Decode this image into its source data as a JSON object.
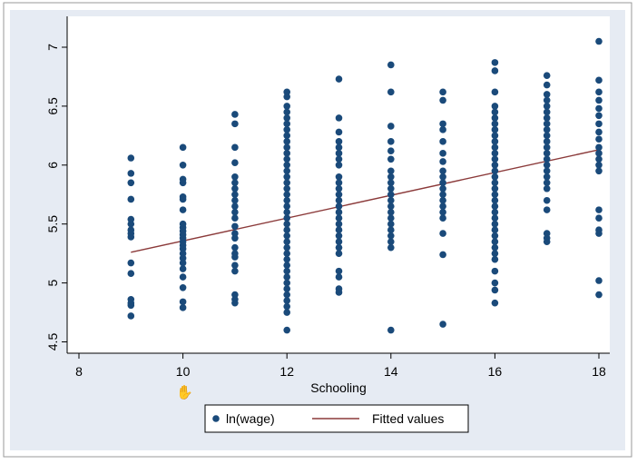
{
  "chart_data": {
    "type": "scatter",
    "xlabel": "Schooling",
    "ylabel": "",
    "xlim": [
      8,
      18
    ],
    "ylim": [
      4.5,
      7
    ],
    "xticks": [
      "8",
      "10",
      "12",
      "14",
      "16",
      "18"
    ],
    "yticks": [
      "4.5",
      "5",
      "5.5",
      "6",
      "6.5",
      "7"
    ],
    "grid": false,
    "legend_position": "bottom",
    "colors": {
      "points": "#1a4a7a",
      "fit_line": "#8b3a3a",
      "panel": "#e6ebf3",
      "plot": "#ffffff"
    },
    "series": [
      {
        "name": "ln(wage)",
        "kind": "scatter",
        "points": [
          [
            9,
            6.06
          ],
          [
            9,
            5.93
          ],
          [
            9,
            5.85
          ],
          [
            9,
            5.71
          ],
          [
            9,
            5.54
          ],
          [
            9,
            5.5
          ],
          [
            9,
            5.45
          ],
          [
            9,
            5.42
          ],
          [
            9,
            5.39
          ],
          [
            9,
            5.17
          ],
          [
            9,
            5.08
          ],
          [
            9,
            4.86
          ],
          [
            9,
            4.83
          ],
          [
            9,
            4.81
          ],
          [
            9,
            4.72
          ],
          [
            10,
            6.15
          ],
          [
            10,
            6.0
          ],
          [
            10,
            5.88
          ],
          [
            10,
            5.85
          ],
          [
            10,
            5.73
          ],
          [
            10,
            5.71
          ],
          [
            10,
            5.62
          ],
          [
            10,
            5.5
          ],
          [
            10,
            5.47
          ],
          [
            10,
            5.44
          ],
          [
            10,
            5.41
          ],
          [
            10,
            5.38
          ],
          [
            10,
            5.35
          ],
          [
            10,
            5.32
          ],
          [
            10,
            5.29
          ],
          [
            10,
            5.25
          ],
          [
            10,
            5.21
          ],
          [
            10,
            5.17
          ],
          [
            10,
            5.12
          ],
          [
            10,
            5.05
          ],
          [
            10,
            4.96
          ],
          [
            10,
            4.84
          ],
          [
            10,
            4.79
          ],
          [
            11,
            6.43
          ],
          [
            11,
            6.35
          ],
          [
            11,
            6.15
          ],
          [
            11,
            6.02
          ],
          [
            11,
            5.9
          ],
          [
            11,
            5.85
          ],
          [
            11,
            5.8
          ],
          [
            11,
            5.75
          ],
          [
            11,
            5.7
          ],
          [
            11,
            5.65
          ],
          [
            11,
            5.6
          ],
          [
            11,
            5.55
          ],
          [
            11,
            5.48
          ],
          [
            11,
            5.42
          ],
          [
            11,
            5.38
          ],
          [
            11,
            5.3
          ],
          [
            11,
            5.25
          ],
          [
            11,
            5.22
          ],
          [
            11,
            5.15
          ],
          [
            11,
            5.1
          ],
          [
            11,
            4.9
          ],
          [
            11,
            4.86
          ],
          [
            11,
            4.83
          ],
          [
            12,
            6.62
          ],
          [
            12,
            6.58
          ],
          [
            12,
            6.5
          ],
          [
            12,
            6.45
          ],
          [
            12,
            6.4
          ],
          [
            12,
            6.35
          ],
          [
            12,
            6.3
          ],
          [
            12,
            6.25
          ],
          [
            12,
            6.2
          ],
          [
            12,
            6.15
          ],
          [
            12,
            6.1
          ],
          [
            12,
            6.05
          ],
          [
            12,
            6.0
          ],
          [
            12,
            5.95
          ],
          [
            12,
            5.9
          ],
          [
            12,
            5.85
          ],
          [
            12,
            5.8
          ],
          [
            12,
            5.75
          ],
          [
            12,
            5.7
          ],
          [
            12,
            5.65
          ],
          [
            12,
            5.6
          ],
          [
            12,
            5.55
          ],
          [
            12,
            5.5
          ],
          [
            12,
            5.45
          ],
          [
            12,
            5.4
          ],
          [
            12,
            5.35
          ],
          [
            12,
            5.3
          ],
          [
            12,
            5.25
          ],
          [
            12,
            5.2
          ],
          [
            12,
            5.15
          ],
          [
            12,
            5.1
          ],
          [
            12,
            5.05
          ],
          [
            12,
            5.0
          ],
          [
            12,
            4.95
          ],
          [
            12,
            4.9
          ],
          [
            12,
            4.85
          ],
          [
            12,
            4.8
          ],
          [
            12,
            4.75
          ],
          [
            12,
            4.6
          ],
          [
            13,
            6.73
          ],
          [
            13,
            6.4
          ],
          [
            13,
            6.28
          ],
          [
            13,
            6.2
          ],
          [
            13,
            6.15
          ],
          [
            13,
            6.1
          ],
          [
            13,
            6.05
          ],
          [
            13,
            6.0
          ],
          [
            13,
            5.9
          ],
          [
            13,
            5.85
          ],
          [
            13,
            5.8
          ],
          [
            13,
            5.75
          ],
          [
            13,
            5.7
          ],
          [
            13,
            5.65
          ],
          [
            13,
            5.6
          ],
          [
            13,
            5.55
          ],
          [
            13,
            5.5
          ],
          [
            13,
            5.45
          ],
          [
            13,
            5.4
          ],
          [
            13,
            5.35
          ],
          [
            13,
            5.3
          ],
          [
            13,
            5.25
          ],
          [
            13,
            5.1
          ],
          [
            13,
            5.05
          ],
          [
            13,
            4.95
          ],
          [
            13,
            4.92
          ],
          [
            14,
            6.85
          ],
          [
            14,
            6.62
          ],
          [
            14,
            6.33
          ],
          [
            14,
            6.2
          ],
          [
            14,
            6.12
          ],
          [
            14,
            6.05
          ],
          [
            14,
            5.95
          ],
          [
            14,
            5.9
          ],
          [
            14,
            5.85
          ],
          [
            14,
            5.8
          ],
          [
            14,
            5.75
          ],
          [
            14,
            5.7
          ],
          [
            14,
            5.65
          ],
          [
            14,
            5.6
          ],
          [
            14,
            5.55
          ],
          [
            14,
            5.5
          ],
          [
            14,
            5.45
          ],
          [
            14,
            5.4
          ],
          [
            14,
            5.35
          ],
          [
            14,
            5.3
          ],
          [
            14,
            4.6
          ],
          [
            15,
            6.62
          ],
          [
            15,
            6.55
          ],
          [
            15,
            6.35
          ],
          [
            15,
            6.3
          ],
          [
            15,
            6.2
          ],
          [
            15,
            6.1
          ],
          [
            15,
            6.03
          ],
          [
            15,
            5.95
          ],
          [
            15,
            5.9
          ],
          [
            15,
            5.85
          ],
          [
            15,
            5.8
          ],
          [
            15,
            5.75
          ],
          [
            15,
            5.7
          ],
          [
            15,
            5.65
          ],
          [
            15,
            5.6
          ],
          [
            15,
            5.55
          ],
          [
            15,
            5.42
          ],
          [
            15,
            5.24
          ],
          [
            15,
            4.65
          ],
          [
            16,
            6.87
          ],
          [
            16,
            6.8
          ],
          [
            16,
            6.62
          ],
          [
            16,
            6.5
          ],
          [
            16,
            6.45
          ],
          [
            16,
            6.4
          ],
          [
            16,
            6.35
          ],
          [
            16,
            6.3
          ],
          [
            16,
            6.25
          ],
          [
            16,
            6.2
          ],
          [
            16,
            6.15
          ],
          [
            16,
            6.1
          ],
          [
            16,
            6.05
          ],
          [
            16,
            6.0
          ],
          [
            16,
            5.95
          ],
          [
            16,
            5.9
          ],
          [
            16,
            5.85
          ],
          [
            16,
            5.8
          ],
          [
            16,
            5.75
          ],
          [
            16,
            5.7
          ],
          [
            16,
            5.65
          ],
          [
            16,
            5.6
          ],
          [
            16,
            5.55
          ],
          [
            16,
            5.5
          ],
          [
            16,
            5.45
          ],
          [
            16,
            5.4
          ],
          [
            16,
            5.35
          ],
          [
            16,
            5.3
          ],
          [
            16,
            5.25
          ],
          [
            16,
            5.2
          ],
          [
            16,
            5.1
          ],
          [
            16,
            5.0
          ],
          [
            16,
            4.94
          ],
          [
            16,
            4.83
          ],
          [
            17,
            6.76
          ],
          [
            17,
            6.68
          ],
          [
            17,
            6.6
          ],
          [
            17,
            6.55
          ],
          [
            17,
            6.5
          ],
          [
            17,
            6.45
          ],
          [
            17,
            6.4
          ],
          [
            17,
            6.35
          ],
          [
            17,
            6.3
          ],
          [
            17,
            6.25
          ],
          [
            17,
            6.2
          ],
          [
            17,
            6.15
          ],
          [
            17,
            6.1
          ],
          [
            17,
            6.05
          ],
          [
            17,
            6.0
          ],
          [
            17,
            5.95
          ],
          [
            17,
            5.9
          ],
          [
            17,
            5.85
          ],
          [
            17,
            5.8
          ],
          [
            17,
            5.7
          ],
          [
            17,
            5.62
          ],
          [
            17,
            5.42
          ],
          [
            17,
            5.38
          ],
          [
            17,
            5.35
          ],
          [
            18,
            7.05
          ],
          [
            18,
            6.72
          ],
          [
            18,
            6.62
          ],
          [
            18,
            6.55
          ],
          [
            18,
            6.48
          ],
          [
            18,
            6.42
          ],
          [
            18,
            6.35
          ],
          [
            18,
            6.28
          ],
          [
            18,
            6.22
          ],
          [
            18,
            6.15
          ],
          [
            18,
            6.1
          ],
          [
            18,
            6.05
          ],
          [
            18,
            6.0
          ],
          [
            18,
            5.95
          ],
          [
            18,
            5.62
          ],
          [
            18,
            5.55
          ],
          [
            18,
            5.45
          ],
          [
            18,
            5.42
          ],
          [
            18,
            5.02
          ],
          [
            18,
            4.9
          ]
        ]
      },
      {
        "name": "Fitted values",
        "kind": "line",
        "points": [
          [
            9,
            5.26
          ],
          [
            18,
            6.13
          ]
        ]
      }
    ]
  }
}
